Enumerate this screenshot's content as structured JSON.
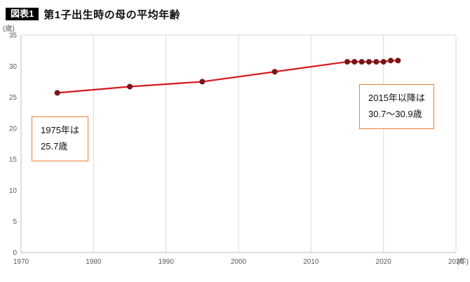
{
  "header": {
    "badge": "図表1",
    "title": "第1子出生時の母の平均年齢"
  },
  "chart": {
    "y_unit": "(歳)",
    "x_unit": "(年)"
  },
  "annotations": {
    "box1": {
      "line1": "1975年は",
      "line2": "25.7歳"
    },
    "box2": {
      "line1": "2015年以降は",
      "line2": "30.7〜30.9歳"
    }
  },
  "chart_data": {
    "type": "line",
    "title": "第1子出生時の母の平均年齢",
    "x": [
      1975,
      1985,
      1995,
      2005,
      2015,
      2016,
      2017,
      2018,
      2019,
      2020,
      2021,
      2022
    ],
    "y": [
      25.7,
      26.7,
      27.5,
      29.1,
      30.7,
      30.7,
      30.7,
      30.7,
      30.7,
      30.7,
      30.9,
      30.9
    ],
    "xlabel": "(年)",
    "ylabel": "(歳)",
    "xlim": [
      1970,
      2030
    ],
    "x_tick_step": 10,
    "ylim": [
      0,
      35
    ],
    "y_tick_step": 5,
    "grid": "vertical-only",
    "legend": "none",
    "colors": {
      "line": "#d7171f",
      "marker": "#7a1518",
      "grid": "#d9d9d9",
      "axis": "#bfbfbf",
      "tick_text": "#595959",
      "callout_border": "#ed7d31"
    }
  }
}
